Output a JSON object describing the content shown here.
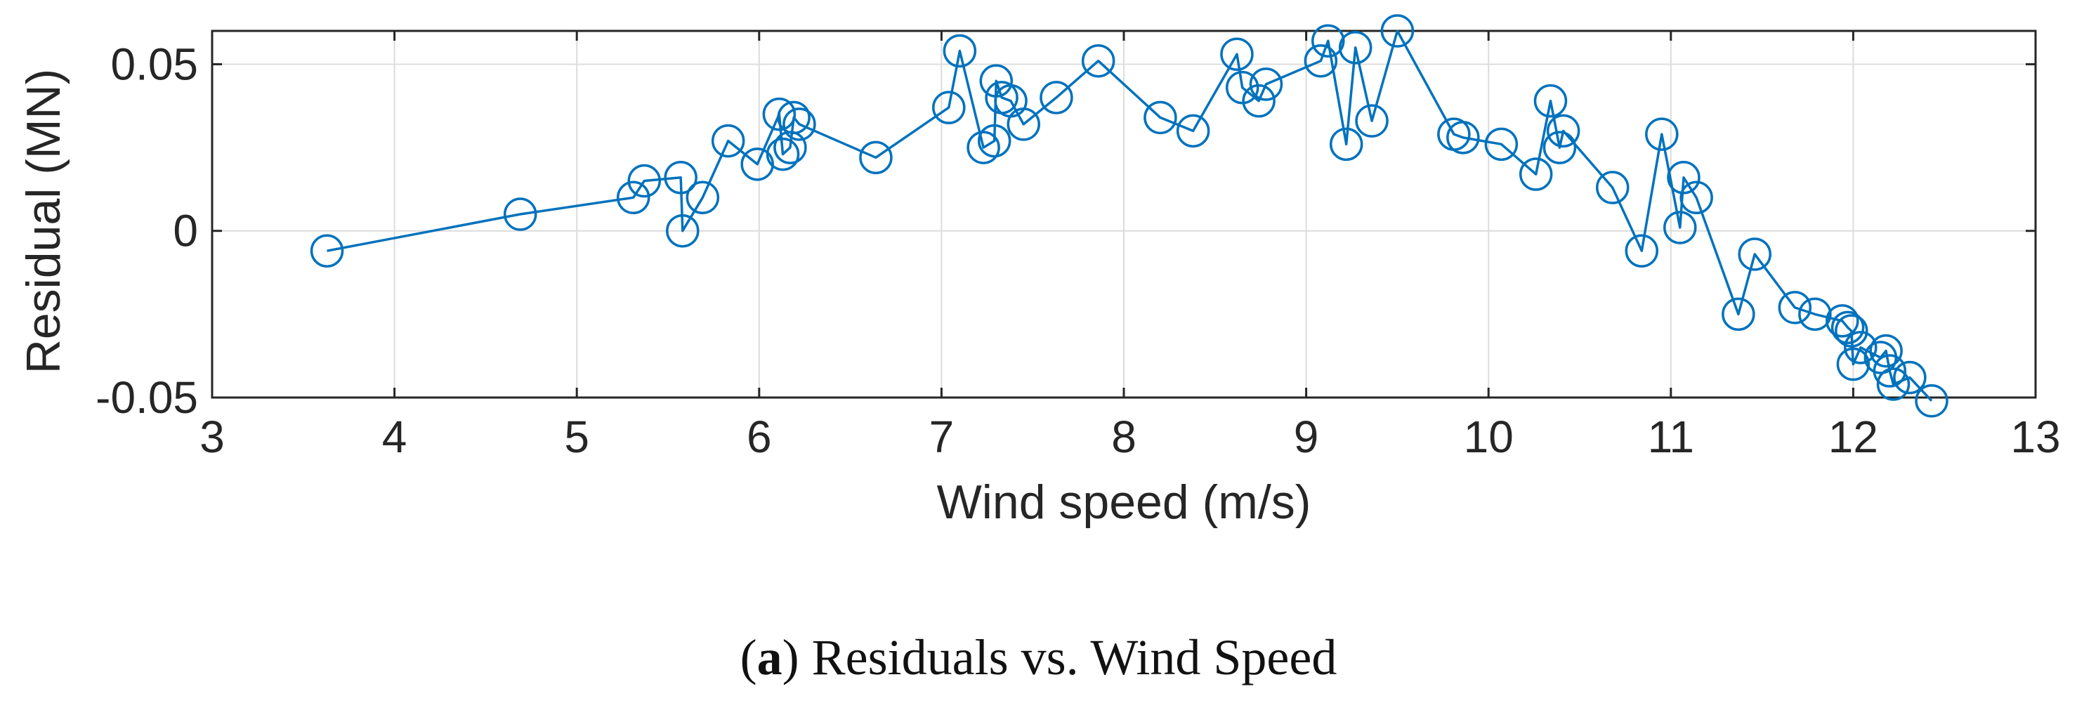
{
  "chart_data": {
    "type": "line",
    "title": "",
    "xlabel": "Wind speed (m/s)",
    "ylabel": "Residual (MN)",
    "xlim": [
      3,
      13
    ],
    "ylim": [
      -0.05,
      0.06
    ],
    "xticks": [
      3,
      4,
      5,
      6,
      7,
      8,
      9,
      10,
      11,
      12,
      13
    ],
    "yticks": [
      {
        "value": -0.05,
        "label": "-0.05"
      },
      {
        "value": 0,
        "label": "0"
      },
      {
        "value": 0.05,
        "label": "0.05"
      }
    ],
    "grid": true,
    "marker": "circle",
    "color": "#0072BD",
    "series": [
      {
        "name": "Residual",
        "points": [
          [
            3.63,
            -0.006
          ],
          [
            4.69,
            0.005
          ],
          [
            5.31,
            0.01
          ],
          [
            5.37,
            0.015
          ],
          [
            5.57,
            0.016
          ],
          [
            5.58,
            0.0
          ],
          [
            5.69,
            0.01
          ],
          [
            5.83,
            0.027
          ],
          [
            5.99,
            0.02
          ],
          [
            6.11,
            0.035
          ],
          [
            6.13,
            0.023
          ],
          [
            6.17,
            0.025
          ],
          [
            6.19,
            0.034
          ],
          [
            6.22,
            0.032
          ],
          [
            6.64,
            0.022
          ],
          [
            7.04,
            0.037
          ],
          [
            7.1,
            0.054
          ],
          [
            7.23,
            0.025
          ],
          [
            7.29,
            0.027
          ],
          [
            7.3,
            0.045
          ],
          [
            7.33,
            0.04
          ],
          [
            7.38,
            0.039
          ],
          [
            7.45,
            0.032
          ],
          [
            7.63,
            0.04
          ],
          [
            7.86,
            0.051
          ],
          [
            8.2,
            0.034
          ],
          [
            8.38,
            0.03
          ],
          [
            8.62,
            0.053
          ],
          [
            8.65,
            0.043
          ],
          [
            8.74,
            0.039
          ],
          [
            8.78,
            0.044
          ],
          [
            9.08,
            0.051
          ],
          [
            9.12,
            0.057
          ],
          [
            9.22,
            0.026
          ],
          [
            9.27,
            0.055
          ],
          [
            9.36,
            0.033
          ],
          [
            9.5,
            0.06
          ],
          [
            9.81,
            0.029
          ],
          [
            9.86,
            0.028
          ],
          [
            10.07,
            0.026
          ],
          [
            10.26,
            0.017
          ],
          [
            10.34,
            0.039
          ],
          [
            10.39,
            0.025
          ],
          [
            10.41,
            0.03
          ],
          [
            10.68,
            0.013
          ],
          [
            10.84,
            -0.006
          ],
          [
            10.95,
            0.029
          ],
          [
            11.05,
            0.001
          ],
          [
            11.07,
            0.016
          ],
          [
            11.14,
            0.01
          ],
          [
            11.37,
            -0.025
          ],
          [
            11.46,
            -0.007
          ],
          [
            11.68,
            -0.023
          ],
          [
            11.79,
            -0.025
          ],
          [
            11.94,
            -0.027
          ],
          [
            11.97,
            -0.029
          ],
          [
            11.99,
            -0.03
          ],
          [
            12.0,
            -0.04
          ],
          [
            12.04,
            -0.035
          ],
          [
            12.15,
            -0.038
          ],
          [
            12.18,
            -0.036
          ],
          [
            12.2,
            -0.042
          ],
          [
            12.22,
            -0.046
          ],
          [
            12.31,
            -0.044
          ],
          [
            12.43,
            -0.051
          ]
        ]
      }
    ]
  },
  "caption": {
    "label": "a",
    "text": "Residuals vs. Wind Speed"
  }
}
